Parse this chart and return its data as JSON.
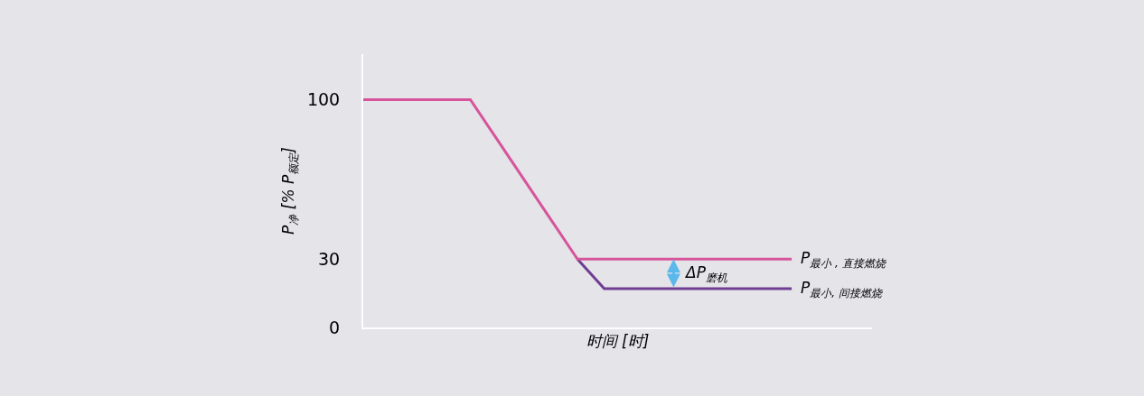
{
  "chart_data": {
    "type": "line",
    "xlabel": "时间 [时]",
    "ylabel": "P$_{净}$ [% P$_{额定}$]",
    "categories": [
      null,
      null,
      null,
      null,
      null,
      null,
      null,
      null,
      null,
      null,
      null,
      null,
      null,
      null,
      null,
      null,
      null,
      null,
      null,
      null
    ],
    "ylim": [
      0,
      120
    ],
    "yticks": [
      0,
      30,
      100
    ],
    "tick_labels": "y",
    "grid": false,
    "legend": false,
    "marker": "none",
    "line_style": "solid",
    "series": [
      {
        "name": "P$_{最小, 间接燃烧}$",
        "color": "#6f3d91",
        "values": [
          null,
          null,
          null,
          null,
          null,
          null,
          null,
          null,
          30,
          17,
          17,
          17,
          17,
          17,
          17,
          17,
          17,
          null,
          null,
          null
        ]
      },
      {
        "name": "P$_{最小 , 直接燃烧}$",
        "color": "#d6559a",
        "values": [
          100,
          100,
          100,
          100,
          100,
          82.5,
          65,
          47.5,
          30,
          30,
          30,
          30,
          30,
          30,
          30,
          30,
          30,
          null,
          null,
          null
        ]
      }
    ],
    "annotations": [
      "ΔP$_{磨机}$"
    ]
  }
}
